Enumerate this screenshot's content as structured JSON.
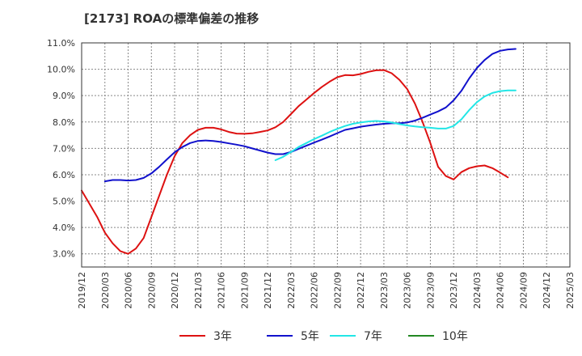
{
  "chart_data": {
    "type": "line",
    "title": "[2173]  ROAの標準偏差の推移",
    "xlabel": "",
    "ylabel": "",
    "ylim": [
      2.5,
      11.0
    ],
    "y_ticks": [
      "3.0%",
      "4.0%",
      "5.0%",
      "6.0%",
      "7.0%",
      "8.0%",
      "9.0%",
      "10.0%",
      "11.0%"
    ],
    "y_tick_values": [
      3,
      4,
      5,
      6,
      7,
      8,
      9,
      10,
      11
    ],
    "x_ticks": [
      "2019/12",
      "2020/03",
      "2020/06",
      "2020/09",
      "2020/12",
      "2021/03",
      "2021/06",
      "2021/09",
      "2021/12",
      "2022/03",
      "2022/06",
      "2022/09",
      "2022/12",
      "2023/03",
      "2023/06",
      "2023/09",
      "2023/12",
      "2024/03",
      "2024/06",
      "2024/09",
      "2024/12",
      "2025/03"
    ],
    "grid": true,
    "legend_position": "bottom",
    "series": [
      {
        "name": "3年",
        "color": "#dd1111",
        "points": [
          [
            0,
            5.4
          ],
          [
            1,
            4.9
          ],
          [
            2,
            4.4
          ],
          [
            3,
            3.8
          ],
          [
            4,
            3.4
          ],
          [
            5,
            3.1
          ],
          [
            6,
            3.0
          ],
          [
            7,
            3.2
          ],
          [
            8,
            3.6
          ],
          [
            9,
            4.4
          ],
          [
            10,
            5.2
          ],
          [
            11,
            6.0
          ],
          [
            12,
            6.7
          ],
          [
            13,
            7.2
          ],
          [
            14,
            7.5
          ],
          [
            15,
            7.7
          ],
          [
            16,
            7.78
          ],
          [
            17,
            7.78
          ],
          [
            18,
            7.72
          ],
          [
            19,
            7.62
          ],
          [
            20,
            7.56
          ],
          [
            21,
            7.55
          ],
          [
            22,
            7.57
          ],
          [
            23,
            7.62
          ],
          [
            24,
            7.68
          ],
          [
            25,
            7.8
          ],
          [
            26,
            8.0
          ],
          [
            27,
            8.3
          ],
          [
            28,
            8.6
          ],
          [
            29,
            8.85
          ],
          [
            30,
            9.1
          ],
          [
            31,
            9.33
          ],
          [
            32,
            9.53
          ],
          [
            33,
            9.7
          ],
          [
            34,
            9.78
          ],
          [
            35,
            9.77
          ],
          [
            36,
            9.82
          ],
          [
            37,
            9.9
          ],
          [
            38,
            9.96
          ],
          [
            39,
            9.97
          ],
          [
            40,
            9.85
          ],
          [
            41,
            9.6
          ],
          [
            42,
            9.25
          ],
          [
            43,
            8.7
          ],
          [
            44,
            8.0
          ],
          [
            45,
            7.2
          ],
          [
            46,
            6.3
          ],
          [
            47,
            5.95
          ],
          [
            48,
            5.82
          ],
          [
            49,
            6.1
          ],
          [
            50,
            6.25
          ],
          [
            51,
            6.32
          ],
          [
            52,
            6.35
          ],
          [
            53,
            6.25
          ],
          [
            54,
            6.08
          ],
          [
            55,
            5.9
          ]
        ]
      },
      {
        "name": "5年",
        "color": "#1111cc",
        "points": [
          [
            3,
            5.75
          ],
          [
            4,
            5.8
          ],
          [
            5,
            5.8
          ],
          [
            6,
            5.78
          ],
          [
            7,
            5.8
          ],
          [
            8,
            5.88
          ],
          [
            9,
            6.05
          ],
          [
            10,
            6.3
          ],
          [
            11,
            6.58
          ],
          [
            12,
            6.85
          ],
          [
            13,
            7.05
          ],
          [
            14,
            7.2
          ],
          [
            15,
            7.28
          ],
          [
            16,
            7.3
          ],
          [
            17,
            7.28
          ],
          [
            18,
            7.24
          ],
          [
            19,
            7.19
          ],
          [
            20,
            7.14
          ],
          [
            21,
            7.08
          ],
          [
            22,
            7.0
          ],
          [
            23,
            6.92
          ],
          [
            24,
            6.84
          ],
          [
            25,
            6.78
          ],
          [
            26,
            6.78
          ],
          [
            27,
            6.86
          ],
          [
            28,
            6.98
          ],
          [
            29,
            7.1
          ],
          [
            30,
            7.22
          ],
          [
            31,
            7.33
          ],
          [
            32,
            7.45
          ],
          [
            33,
            7.58
          ],
          [
            34,
            7.7
          ],
          [
            35,
            7.76
          ],
          [
            36,
            7.82
          ],
          [
            37,
            7.86
          ],
          [
            38,
            7.9
          ],
          [
            39,
            7.93
          ],
          [
            40,
            7.95
          ],
          [
            41,
            7.95
          ],
          [
            42,
            7.98
          ],
          [
            43,
            8.05
          ],
          [
            44,
            8.16
          ],
          [
            45,
            8.28
          ],
          [
            46,
            8.4
          ],
          [
            47,
            8.55
          ],
          [
            48,
            8.82
          ],
          [
            49,
            9.18
          ],
          [
            50,
            9.65
          ],
          [
            51,
            10.05
          ],
          [
            52,
            10.35
          ],
          [
            53,
            10.58
          ],
          [
            54,
            10.7
          ],
          [
            55,
            10.75
          ],
          [
            56,
            10.77
          ]
        ]
      },
      {
        "name": "7年",
        "color": "#22e6e6",
        "points": [
          [
            25,
            6.55
          ],
          [
            26,
            6.68
          ],
          [
            27,
            6.86
          ],
          [
            28,
            7.05
          ],
          [
            29,
            7.2
          ],
          [
            30,
            7.35
          ],
          [
            31,
            7.48
          ],
          [
            32,
            7.62
          ],
          [
            33,
            7.74
          ],
          [
            34,
            7.85
          ],
          [
            35,
            7.93
          ],
          [
            36,
            7.98
          ],
          [
            37,
            8.02
          ],
          [
            38,
            8.04
          ],
          [
            39,
            8.02
          ],
          [
            40,
            7.98
          ],
          [
            41,
            7.92
          ],
          [
            42,
            7.87
          ],
          [
            43,
            7.83
          ],
          [
            44,
            7.8
          ],
          [
            45,
            7.78
          ],
          [
            46,
            7.75
          ],
          [
            47,
            7.75
          ],
          [
            48,
            7.85
          ],
          [
            49,
            8.1
          ],
          [
            50,
            8.45
          ],
          [
            51,
            8.75
          ],
          [
            52,
            8.97
          ],
          [
            53,
            9.1
          ],
          [
            54,
            9.17
          ],
          [
            55,
            9.2
          ],
          [
            56,
            9.2
          ]
        ]
      },
      {
        "name": "10年",
        "color": "#228822",
        "points": []
      }
    ]
  }
}
